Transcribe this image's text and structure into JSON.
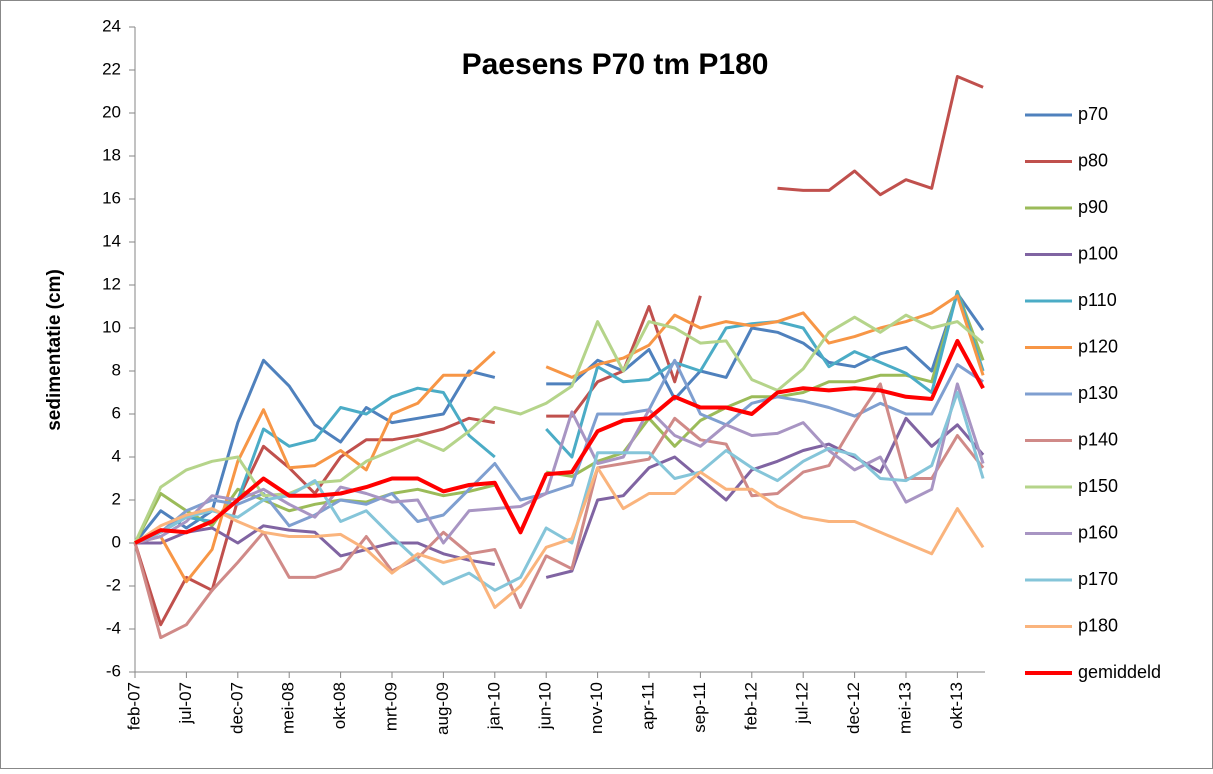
{
  "chart_data": {
    "type": "line",
    "title": "Paesens P70 tm P180",
    "y_label": "sedimentatie (cm)",
    "categories": [
      "feb-07",
      null,
      "jul-07",
      null,
      "dec-07",
      null,
      "mei-08",
      null,
      "okt-08",
      null,
      "mrt-09",
      null,
      "aug-09",
      null,
      "jan-10",
      null,
      "jun-10",
      null,
      "nov-10",
      null,
      "apr-11",
      null,
      "sep-11",
      null,
      "feb-12",
      null,
      "jul-12",
      null,
      "dec-12",
      null,
      "mei-13",
      null,
      "okt-13",
      null
    ],
    "ylim": [
      -6,
      24
    ],
    "yticks": [
      -6,
      -4,
      -2,
      0,
      2,
      4,
      6,
      8,
      10,
      12,
      14,
      16,
      18,
      20,
      22,
      24
    ],
    "grid": false,
    "legend": "right",
    "series": [
      {
        "name": "p70",
        "color": "#4f81bd",
        "width": 3,
        "values": [
          0,
          1.5,
          0.7,
          1.5,
          5.6,
          8.5,
          7.3,
          5.5,
          4.7,
          6.3,
          5.6,
          5.8,
          6.0,
          8.0,
          7.7,
          null,
          7.4,
          7.4,
          8.5,
          8.0,
          9.0,
          6.7,
          8.0,
          7.7,
          10.0,
          9.8,
          9.3,
          8.4,
          8.2,
          8.8,
          9.1,
          8.0,
          11.6,
          9.9
        ]
      },
      {
        "name": "p80",
        "color": "#c0504d",
        "width": 3,
        "values": [
          0,
          -3.8,
          -1.6,
          -2.2,
          2.0,
          4.5,
          3.5,
          2.3,
          4.0,
          4.8,
          4.8,
          5.0,
          5.3,
          5.8,
          5.6,
          null,
          5.9,
          5.9,
          7.5,
          8.0,
          11.0,
          7.5,
          11.5,
          null,
          null,
          16.5,
          16.4,
          16.4,
          17.3,
          16.2,
          16.9,
          16.5,
          21.7,
          21.2
        ]
      },
      {
        "name": "p90",
        "color": "#9bbb59",
        "width": 3,
        "values": [
          0,
          2.3,
          1.5,
          0.8,
          2.5,
          2.0,
          1.5,
          1.8,
          2.0,
          1.9,
          2.3,
          2.5,
          2.2,
          2.4,
          2.7,
          null,
          3.3,
          3.1,
          3.8,
          4.2,
          5.8,
          4.5,
          5.7,
          6.3,
          6.8,
          6.8,
          7.0,
          7.5,
          7.5,
          7.8,
          7.8,
          7.5,
          11.7,
          8.5
        ]
      },
      {
        "name": "p100",
        "color": "#8064a2",
        "width": 3,
        "values": [
          0,
          0,
          0.5,
          0.7,
          0,
          0.8,
          0.6,
          0.5,
          -0.6,
          -0.3,
          0,
          0,
          -0.5,
          -0.8,
          -1.0,
          null,
          -1.6,
          -1.3,
          2.0,
          2.2,
          3.5,
          4.0,
          3.0,
          2.0,
          3.4,
          3.8,
          4.3,
          4.6,
          4.0,
          3.3,
          5.8,
          4.5,
          5.5,
          4.1
        ]
      },
      {
        "name": "p110",
        "color": "#4bacc6",
        "width": 3,
        "values": [
          0,
          0.5,
          1.2,
          1.0,
          2.0,
          5.3,
          4.5,
          4.8,
          6.3,
          6.0,
          6.8,
          7.2,
          7.0,
          5.0,
          4.0,
          null,
          5.3,
          4.0,
          8.2,
          7.5,
          7.6,
          8.4,
          8.0,
          10.0,
          10.2,
          10.3,
          10.0,
          8.2,
          8.9,
          8.4,
          7.9,
          7.0,
          11.7,
          8.0
        ]
      },
      {
        "name": "p120",
        "color": "#f79646",
        "width": 3,
        "values": [
          0,
          0.3,
          -1.8,
          -0.3,
          3.8,
          6.2,
          3.5,
          3.6,
          4.3,
          3.4,
          6.0,
          6.5,
          7.8,
          7.8,
          8.9,
          null,
          8.2,
          7.7,
          8.3,
          8.6,
          9.2,
          10.6,
          10.0,
          10.3,
          10.1,
          10.3,
          10.7,
          9.3,
          9.6,
          10.0,
          10.3,
          10.7,
          11.5,
          7.8
        ]
      },
      {
        "name": "p130",
        "color": "#7f9fd0",
        "width": 3,
        "values": [
          0,
          0.5,
          1.5,
          2.0,
          1.8,
          2.3,
          0.8,
          1.3,
          2.0,
          1.8,
          2.3,
          1.0,
          1.3,
          2.5,
          3.7,
          2.0,
          2.3,
          2.7,
          6.0,
          6.0,
          6.2,
          8.5,
          6.0,
          5.5,
          6.5,
          6.8,
          6.6,
          6.3,
          5.9,
          6.5,
          6.0,
          6.0,
          8.3,
          7.5
        ]
      },
      {
        "name": "p140",
        "color": "#d08a88",
        "width": 3,
        "values": [
          0,
          -4.4,
          -3.8,
          -2.2,
          -0.9,
          0.5,
          -1.6,
          -1.6,
          -1.2,
          0.3,
          -1.3,
          -0.7,
          0.5,
          -0.5,
          -0.3,
          -3.0,
          -0.6,
          -1.2,
          3.5,
          3.7,
          3.9,
          5.8,
          4.8,
          4.6,
          2.2,
          2.3,
          3.3,
          3.6,
          5.6,
          7.4,
          3.0,
          3.0,
          5.0,
          3.5
        ]
      },
      {
        "name": "p150",
        "color": "#b5d48a",
        "width": 3,
        "values": [
          0,
          2.6,
          3.4,
          3.8,
          4.0,
          2.2,
          2.3,
          2.8,
          2.9,
          3.8,
          4.3,
          4.8,
          4.3,
          5.2,
          6.3,
          6.0,
          6.5,
          7.3,
          10.3,
          8.0,
          10.3,
          10.0,
          9.3,
          9.4,
          7.6,
          7.1,
          8.1,
          9.8,
          10.5,
          9.8,
          10.6,
          10.0,
          10.3,
          9.3
        ]
      },
      {
        "name": "p160",
        "color": "#a895c3",
        "width": 3,
        "values": [
          0,
          0.3,
          1.0,
          2.2,
          2.0,
          2.5,
          1.8,
          1.2,
          2.6,
          2.3,
          1.9,
          2.0,
          0,
          1.5,
          1.6,
          1.7,
          2.3,
          6.1,
          3.7,
          4.0,
          6.2,
          5.0,
          4.5,
          5.5,
          5.0,
          5.1,
          5.6,
          4.3,
          3.4,
          4.0,
          1.9,
          2.5,
          7.4,
          3.7
        ]
      },
      {
        "name": "p170",
        "color": "#85c5d9",
        "width": 3,
        "values": [
          0,
          0.5,
          1.2,
          1.5,
          1.2,
          2.0,
          2.2,
          2.9,
          1.0,
          1.5,
          0.3,
          -0.8,
          -1.9,
          -1.4,
          -2.2,
          -1.6,
          0.7,
          0,
          4.2,
          4.2,
          4.2,
          3.0,
          3.3,
          4.3,
          3.5,
          2.9,
          3.8,
          4.4,
          4.1,
          3.0,
          2.9,
          3.6,
          7.0,
          3.0
        ]
      },
      {
        "name": "p180",
        "color": "#fab47d",
        "width": 3,
        "values": [
          0,
          0.8,
          1.3,
          1.6,
          1.0,
          0.5,
          0.3,
          0.3,
          0.4,
          -0.3,
          -1.4,
          -0.5,
          -0.9,
          -0.6,
          -3.0,
          -2.0,
          -0.2,
          0.2,
          3.5,
          1.6,
          2.3,
          2.3,
          3.3,
          2.5,
          2.5,
          1.7,
          1.2,
          1.0,
          1.0,
          0.5,
          0,
          -0.5,
          1.6,
          -0.2
        ]
      },
      {
        "name": "gemiddeld",
        "color": "#ff0000",
        "width": 4,
        "values": [
          0,
          0.6,
          0.5,
          1.0,
          2.0,
          3.0,
          2.2,
          2.2,
          2.3,
          2.6,
          3.0,
          3.0,
          2.4,
          2.7,
          2.8,
          0.5,
          3.2,
          3.3,
          5.2,
          5.7,
          5.8,
          6.8,
          6.3,
          6.3,
          6.0,
          7.0,
          7.2,
          7.1,
          7.2,
          7.1,
          6.8,
          6.7,
          9.4,
          7.2
        ]
      }
    ]
  }
}
